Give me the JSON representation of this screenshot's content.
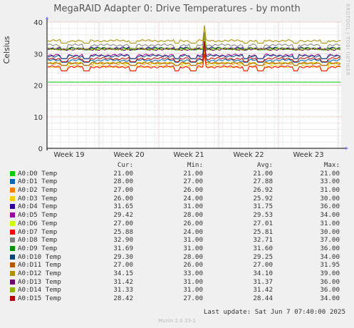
{
  "title": "MegaRAID Adapter 0: Drive Temperatures - by month",
  "side_text": "RRDTOOL / TOBI OETIKER",
  "column_headers": [
    "Cur:",
    "Min:",
    "Avg:",
    "Max:"
  ],
  "last_update": "Last update:  Sat Jun  7 07:40:00 2025",
  "footer": "Munin 2.0.33-1",
  "chart_data": {
    "type": "line",
    "title": "MegaRAID Adapter 0: Drive Temperatures - by month",
    "ylabel": "Celsius",
    "xlabel": "",
    "ylim": [
      0,
      40
    ],
    "yticks": [
      0,
      10,
      20,
      30,
      40
    ],
    "xticks": [
      "Week 19",
      "Week 20",
      "Week 21",
      "Week 22",
      "Week 23"
    ],
    "grid": true,
    "legend_placement": "bottom",
    "series": [
      {
        "name": "A0:D0 Temp",
        "color": "#00cc00",
        "cur": "21.00",
        "min": "21.00",
        "avg": "21.00",
        "max": "21.00"
      },
      {
        "name": "A0:D1 Temp",
        "color": "#0066b3",
        "cur": "28.00",
        "min": "27.00",
        "avg": "27.88",
        "max": "33.00"
      },
      {
        "name": "A0:D2 Temp",
        "color": "#ff8000",
        "cur": "27.00",
        "min": "26.00",
        "avg": "26.92",
        "max": "31.00"
      },
      {
        "name": "A0:D3 Temp",
        "color": "#ffcc00",
        "cur": "26.00",
        "min": "24.00",
        "avg": "25.92",
        "max": "30.00"
      },
      {
        "name": "A0:D4 Temp",
        "color": "#330099",
        "cur": "31.65",
        "min": "31.00",
        "avg": "31.75",
        "max": "36.00"
      },
      {
        "name": "A0:D5 Temp",
        "color": "#990099",
        "cur": "29.42",
        "min": "28.00",
        "avg": "29.53",
        "max": "34.00"
      },
      {
        "name": "A0:D6 Temp",
        "color": "#ccff00",
        "cur": "27.00",
        "min": "26.00",
        "avg": "27.01",
        "max": "31.00"
      },
      {
        "name": "A0:D7 Temp",
        "color": "#ff0000",
        "cur": "25.88",
        "min": "24.00",
        "avg": "25.81",
        "max": "30.00"
      },
      {
        "name": "A0:D8 Temp",
        "color": "#808080",
        "cur": "32.90",
        "min": "31.00",
        "avg": "32.71",
        "max": "37.00"
      },
      {
        "name": "A0:D9 Temp",
        "color": "#008f00",
        "cur": "31.69",
        "min": "31.00",
        "avg": "31.60",
        "max": "36.00"
      },
      {
        "name": "A0:D10 Temp",
        "color": "#00487d",
        "cur": "29.30",
        "min": "28.00",
        "avg": "29.25",
        "max": "34.00"
      },
      {
        "name": "A0:D11 Temp",
        "color": "#b35a00",
        "cur": "27.00",
        "min": "26.00",
        "avg": "27.00",
        "max": "31.95"
      },
      {
        "name": "A0:D12 Temp",
        "color": "#b38f00",
        "cur": "34.15",
        "min": "33.00",
        "avg": "34.10",
        "max": "39.00"
      },
      {
        "name": "A0:D13 Temp",
        "color": "#6b006b",
        "cur": "31.42",
        "min": "31.00",
        "avg": "31.37",
        "max": "36.00"
      },
      {
        "name": "A0:D14 Temp",
        "color": "#8fb300",
        "cur": "31.33",
        "min": "31.00",
        "avg": "31.42",
        "max": "36.00"
      },
      {
        "name": "A0:D15 Temp",
        "color": "#b30000",
        "cur": "28.42",
        "min": "27.00",
        "avg": "28.44",
        "max": "34.00"
      }
    ]
  }
}
